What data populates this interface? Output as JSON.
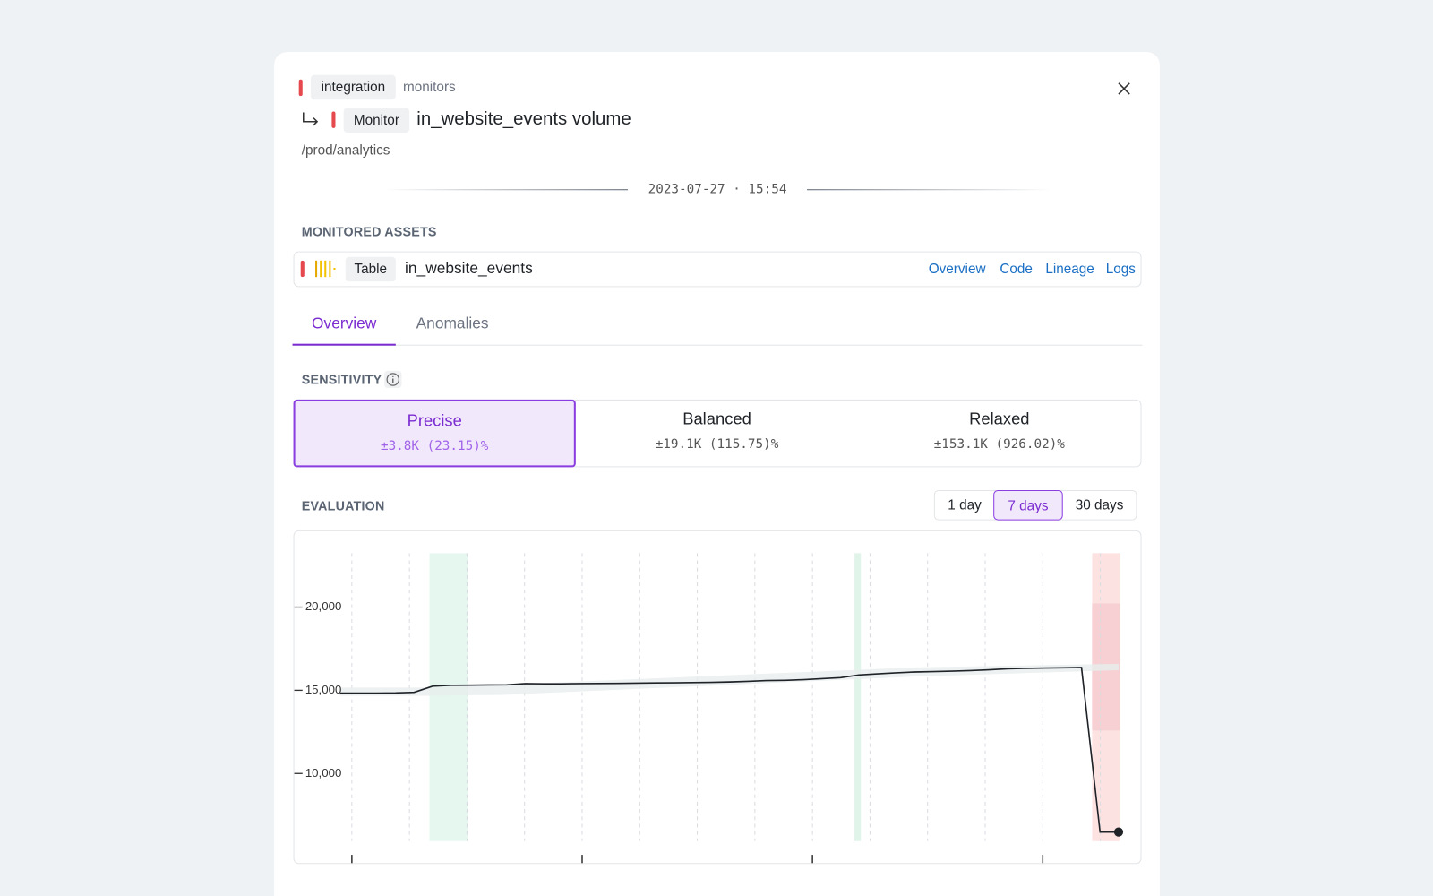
{
  "breadcrumb": {
    "tag": "integration",
    "section": "monitors"
  },
  "monitor": {
    "tag": "Monitor",
    "name": "in_website_events volume",
    "path": "/prod/analytics"
  },
  "timestamp": "2023-07-27 · 15:54",
  "assets": {
    "heading": "MONITORED ASSETS",
    "type": "Table",
    "name": "in_website_events",
    "links": [
      "Overview",
      "Code",
      "Lineage",
      "Logs"
    ]
  },
  "tabs": [
    "Overview",
    "Anomalies"
  ],
  "active_tab": 0,
  "sensitivity": {
    "heading": "SENSITIVITY",
    "selected": 0,
    "options": [
      {
        "label": "Precise",
        "range": "±3.8K (23.15)%"
      },
      {
        "label": "Balanced",
        "range": "±19.1K (115.75)%"
      },
      {
        "label": "Relaxed",
        "range": "±153.1K (926.02)%"
      }
    ]
  },
  "evaluation": {
    "heading": "EVALUATION",
    "ranges": [
      "1 day",
      "7 days",
      "30 days"
    ],
    "selected": 1
  },
  "chart_data": {
    "type": "line",
    "color": "#1f2328",
    "values": [
      14830,
      14830,
      14830,
      14840,
      14880,
      15250,
      15300,
      15310,
      15320,
      15330,
      15400,
      15390,
      15390,
      15400,
      15410,
      15420,
      15430,
      15440,
      15450,
      15460,
      15480,
      15500,
      15540,
      15580,
      15600,
      15640,
      15700,
      15760,
      15920,
      15990,
      16050,
      16100,
      16120,
      16150,
      16180,
      16230,
      16290,
      16320,
      16340,
      16350,
      16370,
      6480,
      6480
    ],
    "ylim": [
      5934,
      23242
    ],
    "yticks": [
      {
        "value": 20000,
        "label": "20,000"
      },
      {
        "value": 15000,
        "label": "15,000"
      },
      {
        "value": 10000,
        "label": "10,000"
      }
    ]
  }
}
